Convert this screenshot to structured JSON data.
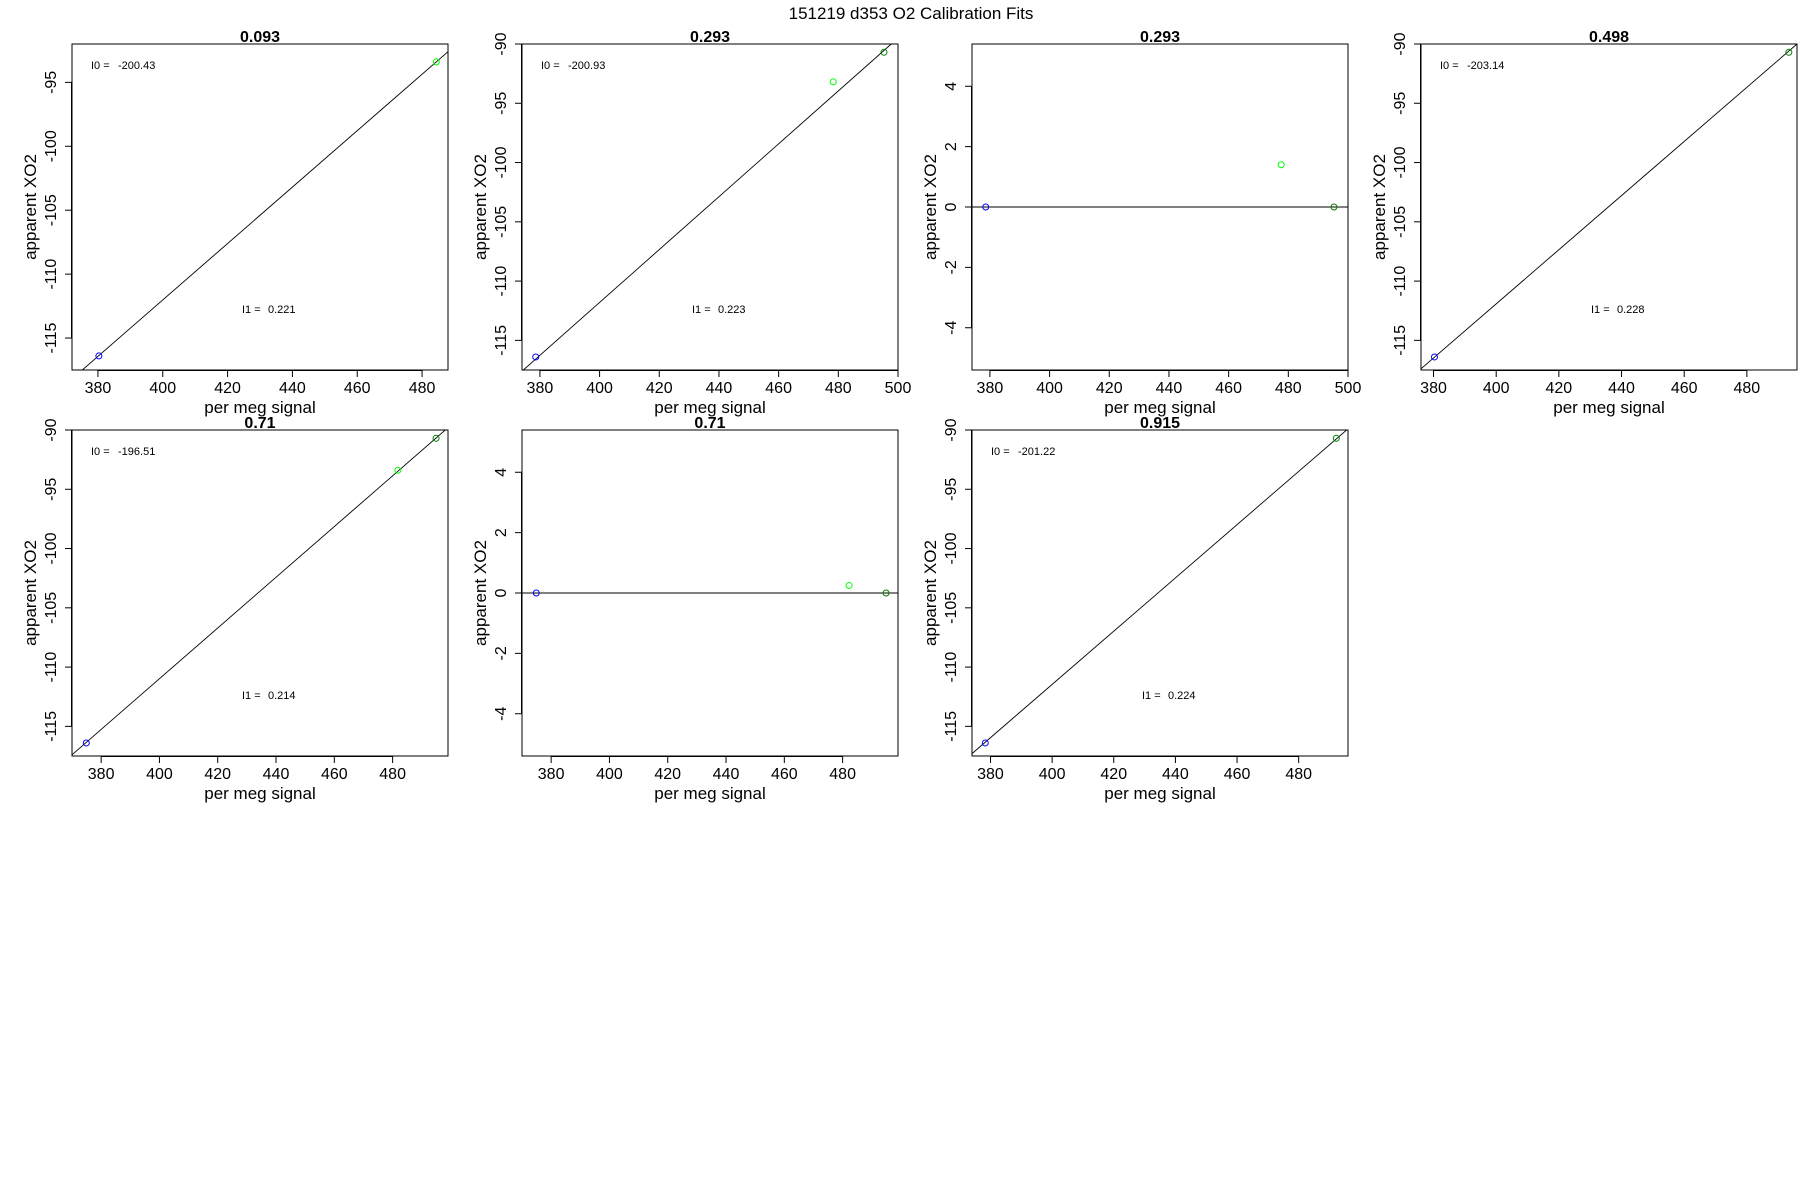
{
  "figure": {
    "title": "151219   d353   O2 Calibration Fits"
  },
  "chart_data": [
    {
      "type": "scatter",
      "title": "0.093",
      "xlabel": "per meg signal",
      "ylabel": "apparent XO2",
      "xlim": [
        372,
        488
      ],
      "ylim": [
        -117.5,
        -92
      ],
      "xticks": [
        380,
        400,
        420,
        440,
        460,
        480
      ],
      "yticks": [
        -95,
        -100,
        -105,
        -110,
        -115
      ],
      "points": [
        {
          "x": 380.3,
          "y": -116.4,
          "color": "#0000ff"
        },
        {
          "x": 484.4,
          "y": -93.4,
          "color": "#00ff00"
        }
      ],
      "fit_line": {
        "x": [
          372,
          488
        ],
        "y": [
          -118.2,
          -92.6
        ]
      },
      "annotations": {
        "i0_label": "I0 =",
        "i0_value": "-200.43",
        "i1_label": "I1 =",
        "i1_value": "0.221"
      }
    },
    {
      "type": "scatter",
      "title": "0.293",
      "xlabel": "per meg signal",
      "ylabel": "apparent XO2",
      "xlim": [
        374,
        500
      ],
      "ylim": [
        -117.5,
        -90
      ],
      "xticks": [
        380,
        400,
        420,
        440,
        460,
        480,
        500
      ],
      "yticks": [
        -90,
        -95,
        -100,
        -105,
        -110,
        -115
      ],
      "points": [
        {
          "x": 378.6,
          "y": -116.4,
          "color": "#0000ff"
        },
        {
          "x": 478.3,
          "y": -93.2,
          "color": "#00ff00"
        },
        {
          "x": 495.3,
          "y": -90.7,
          "color": "#008000"
        }
      ],
      "fit_line": {
        "x": [
          374,
          500
        ],
        "y": [
          -117.6,
          -89.5
        ]
      },
      "annotations": {
        "i0_label": "I0 =",
        "i0_value": "-200.93",
        "i1_label": "I1 =",
        "i1_value": "0.223"
      }
    },
    {
      "type": "scatter",
      "title": "0.293",
      "xlabel": "per meg signal",
      "ylabel": "apparent XO2",
      "xlim": [
        374,
        500
      ],
      "ylim": [
        -5.4,
        5.4
      ],
      "xticks": [
        380,
        400,
        420,
        440,
        460,
        480,
        500
      ],
      "yticks": [
        4,
        2,
        0,
        -2,
        -4
      ],
      "points": [
        {
          "x": 378.6,
          "y": 0,
          "color": "#0000ff"
        },
        {
          "x": 477.6,
          "y": 1.4,
          "color": "#00ff00"
        },
        {
          "x": 495.3,
          "y": 0,
          "color": "#008000"
        }
      ],
      "fit_line": {
        "x": [
          374,
          500
        ],
        "y": [
          0,
          0
        ]
      },
      "annotations": {}
    },
    {
      "type": "scatter",
      "title": "0.498",
      "xlabel": "per meg signal",
      "ylabel": "apparent XO2",
      "xlim": [
        376,
        496
      ],
      "ylim": [
        -117.5,
        -90
      ],
      "xticks": [
        380,
        400,
        420,
        440,
        460,
        480
      ],
      "yticks": [
        -90,
        -95,
        -100,
        -105,
        -110,
        -115
      ],
      "points": [
        {
          "x": 380.3,
          "y": -116.4,
          "color": "#0000ff"
        },
        {
          "x": 493.4,
          "y": -90.7,
          "color": "#008000"
        }
      ],
      "fit_line": {
        "x": [
          376,
          496
        ],
        "y": [
          -117.4,
          -90.0
        ]
      },
      "annotations": {
        "i0_label": "I0 =",
        "i0_value": "-203.14",
        "i1_label": "I1 =",
        "i1_value": "0.228"
      }
    },
    {
      "type": "scatter",
      "title": "0.71",
      "xlabel": "per meg signal",
      "ylabel": "apparent XO2",
      "xlim": [
        370,
        499
      ],
      "ylim": [
        -117.5,
        -90
      ],
      "xticks": [
        380,
        400,
        420,
        440,
        460,
        480
      ],
      "yticks": [
        -90,
        -95,
        -100,
        -105,
        -110,
        -115
      ],
      "points": [
        {
          "x": 374.9,
          "y": -116.4,
          "color": "#0000ff"
        },
        {
          "x": 481.8,
          "y": -93.4,
          "color": "#00ff00"
        },
        {
          "x": 494.9,
          "y": -90.7,
          "color": "#008000"
        }
      ],
      "fit_line": {
        "x": [
          370,
          499
        ],
        "y": [
          -117.4,
          -89.8
        ]
      },
      "annotations": {
        "i0_label": "I0 =",
        "i0_value": "-196.51",
        "i1_label": "I1 =",
        "i1_value": "0.214"
      }
    },
    {
      "type": "scatter",
      "title": "0.71",
      "xlabel": "per meg signal",
      "ylabel": "apparent XO2",
      "xlim": [
        370,
        499
      ],
      "ylim": [
        -5.4,
        5.4
      ],
      "xticks": [
        380,
        400,
        420,
        440,
        460,
        480
      ],
      "yticks": [
        4,
        2,
        0,
        -2,
        -4
      ],
      "points": [
        {
          "x": 374.9,
          "y": 0,
          "color": "#0000ff"
        },
        {
          "x": 482.2,
          "y": 0.25,
          "color": "#00ff00"
        },
        {
          "x": 494.9,
          "y": 0,
          "color": "#008000"
        }
      ],
      "fit_line": {
        "x": [
          370,
          499
        ],
        "y": [
          0,
          0
        ]
      },
      "annotations": {}
    },
    {
      "type": "scatter",
      "title": "0.915",
      "xlabel": "per meg signal",
      "ylabel": "apparent XO2",
      "xlim": [
        374,
        496
      ],
      "ylim": [
        -117.5,
        -90
      ],
      "xticks": [
        380,
        400,
        420,
        440,
        460,
        480
      ],
      "yticks": [
        -90,
        -95,
        -100,
        -105,
        -110,
        -115
      ],
      "points": [
        {
          "x": 378.3,
          "y": -116.4,
          "color": "#0000ff"
        },
        {
          "x": 492.2,
          "y": -90.7,
          "color": "#008000"
        }
      ],
      "fit_line": {
        "x": [
          374,
          496
        ],
        "y": [
          -117.3,
          -89.9
        ]
      },
      "annotations": {
        "i0_label": "I0 =",
        "i0_value": "-201.22",
        "i1_label": "I1 =",
        "i1_value": "0.224"
      }
    }
  ]
}
